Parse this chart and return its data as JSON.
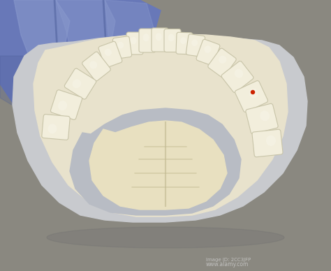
{
  "bg_color": "#8a8880",
  "glove_color_main": "#6878b8",
  "glove_color_light": "#8898cc",
  "glove_color_dark": "#4a5c98",
  "cast_outer_color": "#c8cace",
  "cast_cream_color": "#e8e2cc",
  "cast_inner_gray": "#b8bcc4",
  "tooth_color": "#f2eedc",
  "tooth_highlight": "#faf8f0",
  "tooth_shadow": "#c8c4a8",
  "palate_yellow": "#ddd4a0",
  "palate_cream": "#e8e0c0",
  "ridge_color": "#c0b890",
  "watermark_color": "#d0d0d0",
  "figsize": [
    4.74,
    3.88
  ],
  "dpi": 100,
  "watermark1": "Image ID: 2CC3JFP",
  "watermark2": "www.alamy.com"
}
